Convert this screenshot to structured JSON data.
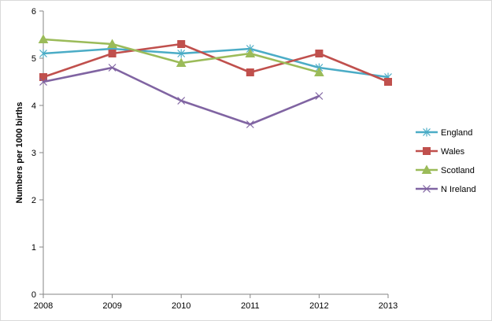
{
  "chart_data": {
    "type": "line",
    "title": "",
    "xlabel": "",
    "ylabel": "Numbers per 1000 births",
    "categories": [
      "2008",
      "2009",
      "2010",
      "2011",
      "2012",
      "2013"
    ],
    "ylim": [
      0,
      6
    ],
    "yticks": [
      "0",
      "1",
      "2",
      "3",
      "4",
      "5",
      "6"
    ],
    "grid": false,
    "legend_position": "right",
    "series": [
      {
        "name": "England",
        "color": "#4bacc6",
        "marker": "asterisk",
        "values": [
          5.1,
          5.2,
          5.1,
          5.2,
          4.8,
          4.6
        ]
      },
      {
        "name": "Wales",
        "color": "#c0504d",
        "marker": "square",
        "values": [
          4.6,
          5.1,
          5.3,
          4.7,
          5.1,
          4.5
        ]
      },
      {
        "name": "Scotland",
        "color": "#9bbb59",
        "marker": "triangle",
        "values": [
          5.4,
          5.3,
          4.9,
          5.1,
          4.7,
          null
        ]
      },
      {
        "name": "N Ireland",
        "color": "#8064a2",
        "marker": "x",
        "values": [
          4.5,
          4.8,
          4.1,
          3.6,
          4.2,
          null
        ]
      }
    ]
  }
}
